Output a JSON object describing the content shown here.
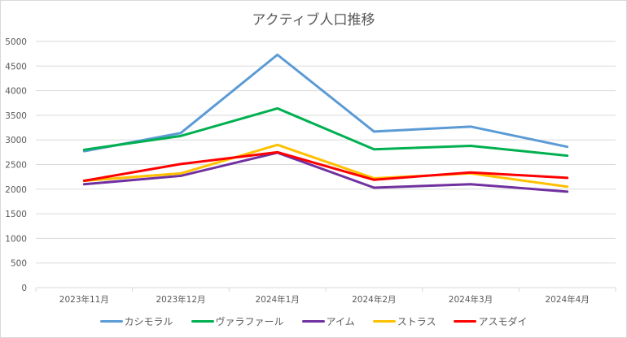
{
  "chart_data": {
    "type": "line",
    "title": "アクティブ人口推移",
    "xlabel": "",
    "ylabel": "",
    "ylim": [
      0,
      5000
    ],
    "yticks": [
      0,
      500,
      1000,
      1500,
      2000,
      2500,
      3000,
      3500,
      4000,
      4500,
      5000
    ],
    "grid": true,
    "legend_position": "bottom",
    "categories": [
      "2023年11月",
      "2023年12月",
      "2024年1月",
      "2024年2月",
      "2024年3月",
      "2024年4月"
    ],
    "series": [
      {
        "name": "カシモラル",
        "color": "#5b9bd5",
        "values": [
          2770,
          3140,
          4730,
          3170,
          3270,
          2860
        ]
      },
      {
        "name": "ヴァラファール",
        "color": "#00b050",
        "values": [
          2800,
          3080,
          3640,
          2810,
          2880,
          2680
        ]
      },
      {
        "name": "アイム",
        "color": "#7030a0",
        "values": [
          2100,
          2270,
          2740,
          2030,
          2100,
          1950
        ]
      },
      {
        "name": "ストラス",
        "color": "#ffc000",
        "values": [
          2170,
          2320,
          2900,
          2220,
          2320,
          2050
        ]
      },
      {
        "name": "アスモダイ",
        "color": "#ff0000",
        "values": [
          2170,
          2510,
          2750,
          2190,
          2340,
          2230
        ]
      }
    ]
  }
}
